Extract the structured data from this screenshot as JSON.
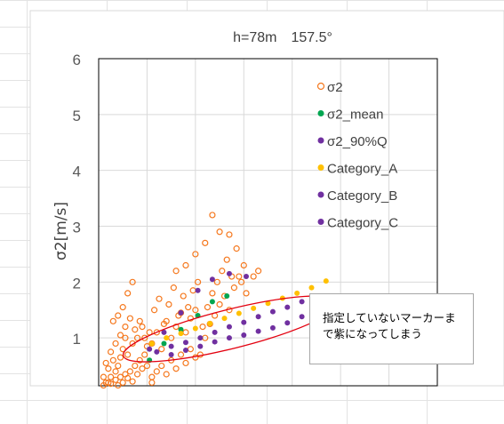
{
  "colors": {
    "gridline": "#d9d9d9",
    "plot_border": "#000000",
    "sigma2": "#f5781e",
    "sigma2_mean": "#00a650",
    "sigma2_90q": "#7030a0",
    "category_a": "#ffc000",
    "category_b": "#7030a0",
    "category_c": "#7030a0",
    "ellipse": "#e3000f"
  },
  "chart_data": {
    "type": "scatter",
    "title": "h=78m　157.5°",
    "ylabel": "σ2[m/s]",
    "xlabel": "",
    "ylim": [
      0,
      6
    ],
    "xlim": [
      0,
      7
    ],
    "yticks": [
      "6",
      "5",
      "4",
      "3",
      "2",
      "1"
    ],
    "ytick_values": [
      6,
      5,
      4,
      3,
      2,
      1
    ],
    "grid": true,
    "legend_position": "top-right",
    "legend": [
      "σ2",
      "σ2_mean",
      "σ2_90%Q",
      "Category_A",
      "Category_B",
      "Category_C"
    ],
    "series": [
      {
        "name": "σ2",
        "marker": "hollow-circle",
        "points": [
          [
            0.05,
            0.1
          ],
          [
            0.1,
            0.15
          ],
          [
            0.15,
            0.12
          ],
          [
            0.2,
            0.2
          ],
          [
            0.25,
            0.18
          ],
          [
            0.3,
            0.1
          ],
          [
            0.35,
            0.25
          ],
          [
            0.4,
            0.15
          ],
          [
            0.45,
            0.3
          ],
          [
            0.5,
            0.2
          ],
          [
            0.55,
            0.35
          ],
          [
            0.6,
            0.28
          ],
          [
            0.65,
            0.4
          ],
          [
            0.7,
            0.22
          ],
          [
            0.75,
            0.5
          ],
          [
            0.8,
            0.35
          ],
          [
            0.85,
            0.6
          ],
          [
            0.9,
            0.45
          ],
          [
            0.95,
            0.7
          ],
          [
            1.0,
            0.5
          ],
          [
            0.1,
            0.3
          ],
          [
            0.2,
            0.45
          ],
          [
            0.3,
            0.6
          ],
          [
            0.4,
            0.5
          ],
          [
            0.5,
            0.8
          ],
          [
            0.6,
            0.7
          ],
          [
            0.7,
            0.9
          ],
          [
            0.8,
            1.0
          ],
          [
            0.9,
            1.2
          ],
          [
            1.0,
            0.85
          ],
          [
            0.15,
            0.55
          ],
          [
            0.25,
            0.75
          ],
          [
            0.35,
            0.9
          ],
          [
            0.45,
            1.05
          ],
          [
            0.55,
            1.2
          ],
          [
            0.65,
            1.35
          ],
          [
            0.75,
            1.15
          ],
          [
            0.85,
            1.3
          ],
          [
            0.95,
            1.0
          ],
          [
            1.05,
            1.1
          ],
          [
            0.3,
            1.3
          ],
          [
            0.4,
            1.4
          ],
          [
            0.5,
            1.55
          ],
          [
            0.6,
            1.8
          ],
          [
            0.7,
            2.0
          ],
          [
            0.55,
            1.0
          ],
          [
            0.45,
            0.65
          ],
          [
            0.35,
            0.4
          ],
          [
            0.25,
            0.3
          ],
          [
            0.15,
            0.2
          ],
          [
            1.1,
            0.3
          ],
          [
            1.2,
            0.4
          ],
          [
            1.3,
            0.5
          ],
          [
            1.4,
            0.35
          ],
          [
            1.5,
            0.6
          ],
          [
            1.6,
            0.45
          ],
          [
            1.7,
            0.7
          ],
          [
            1.8,
            0.55
          ],
          [
            1.9,
            0.8
          ],
          [
            2.0,
            0.65
          ],
          [
            1.1,
            0.9
          ],
          [
            1.2,
            1.1
          ],
          [
            1.3,
            0.8
          ],
          [
            1.4,
            1.3
          ],
          [
            1.5,
            1.0
          ],
          [
            1.6,
            1.2
          ],
          [
            1.7,
            1.45
          ],
          [
            1.8,
            1.1
          ],
          [
            1.9,
            1.35
          ],
          [
            2.0,
            1.5
          ],
          [
            1.15,
            1.5
          ],
          [
            1.25,
            1.7
          ],
          [
            1.35,
            1.25
          ],
          [
            1.45,
            1.6
          ],
          [
            1.55,
            1.9
          ],
          [
            1.65,
            1.4
          ],
          [
            1.75,
            1.75
          ],
          [
            1.85,
            1.55
          ],
          [
            1.95,
            1.85
          ],
          [
            2.05,
            2.0
          ],
          [
            2.1,
            0.7
          ],
          [
            2.2,
            1.0
          ],
          [
            2.3,
            1.25
          ],
          [
            2.4,
            1.4
          ],
          [
            2.5,
            1.6
          ],
          [
            2.6,
            1.75
          ],
          [
            2.7,
            1.5
          ],
          [
            2.8,
            1.9
          ],
          [
            2.9,
            2.1
          ],
          [
            3.0,
            2.3
          ],
          [
            2.15,
            1.2
          ],
          [
            2.25,
            1.55
          ],
          [
            2.35,
            1.8
          ],
          [
            2.45,
            2.0
          ],
          [
            2.55,
            2.2
          ],
          [
            2.65,
            2.4
          ],
          [
            2.75,
            2.1
          ],
          [
            2.85,
            2.6
          ],
          [
            2.95,
            2.0
          ],
          [
            3.05,
            1.8
          ],
          [
            1.8,
            2.3
          ],
          [
            1.6,
            2.2
          ],
          [
            2.0,
            2.5
          ],
          [
            2.2,
            2.7
          ],
          [
            2.5,
            2.9
          ],
          [
            2.35,
            3.2
          ],
          [
            3.3,
            2.2
          ],
          [
            3.2,
            2.1
          ],
          [
            2.7,
            2.85
          ],
          [
            1.1,
            0.2
          ]
        ]
      },
      {
        "name": "σ2_mean",
        "marker": "filled-circle",
        "points": [
          [
            1.05,
            0.6
          ],
          [
            1.35,
            0.9
          ],
          [
            1.7,
            1.15
          ],
          [
            2.05,
            1.4
          ],
          [
            2.35,
            1.65
          ],
          [
            2.65,
            1.75
          ]
        ]
      },
      {
        "name": "σ2_90%Q",
        "marker": "filled-circle",
        "points": [
          [
            1.05,
            0.8
          ],
          [
            1.35,
            1.1
          ],
          [
            1.7,
            1.45
          ],
          [
            2.05,
            1.85
          ],
          [
            2.35,
            2.05
          ],
          [
            2.7,
            2.15
          ],
          [
            3.05,
            2.1
          ]
        ]
      },
      {
        "name": "Category_A",
        "marker": "filled-circle",
        "points": [
          [
            1.1,
            0.9
          ],
          [
            1.4,
            1.0
          ],
          [
            1.7,
            1.08
          ],
          [
            2.0,
            1.17
          ],
          [
            2.3,
            1.26
          ],
          [
            2.6,
            1.35
          ],
          [
            2.9,
            1.44
          ],
          [
            3.2,
            1.53
          ],
          [
            3.5,
            1.62
          ],
          [
            3.8,
            1.71
          ],
          [
            4.1,
            1.8
          ],
          [
            4.4,
            1.9
          ],
          [
            4.7,
            2.02
          ]
        ]
      },
      {
        "name": "Category_B",
        "marker": "filled-circle",
        "points": [
          [
            1.2,
            0.75
          ],
          [
            1.5,
            0.85
          ],
          [
            1.8,
            0.92
          ],
          [
            2.1,
            1.0
          ],
          [
            2.4,
            1.1
          ],
          [
            2.7,
            1.2
          ],
          [
            3.0,
            1.28
          ],
          [
            3.3,
            1.38
          ],
          [
            3.6,
            1.47
          ],
          [
            3.9,
            1.55
          ],
          [
            4.2,
            1.65
          ],
          [
            4.5,
            1.75
          ]
        ]
      },
      {
        "name": "Category_C",
        "marker": "filled-circle",
        "points": [
          [
            1.5,
            0.7
          ],
          [
            1.8,
            0.78
          ],
          [
            2.1,
            0.85
          ],
          [
            2.4,
            0.93
          ],
          [
            2.7,
            1.0
          ],
          [
            3.0,
            1.05
          ],
          [
            3.3,
            1.12
          ],
          [
            3.6,
            1.18
          ],
          [
            3.9,
            1.27
          ],
          [
            4.2,
            1.38
          ],
          [
            4.5,
            1.5
          ]
        ]
      }
    ]
  },
  "annotation": {
    "callout_text": "指定していないマーカーまで紫になってしまう"
  }
}
